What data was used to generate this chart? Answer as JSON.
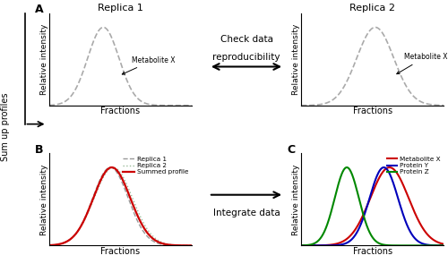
{
  "bg_color": "#ffffff",
  "panel_A_left_title": "Replica 1",
  "panel_A_right_title": "Replica 2",
  "check_data_text_line1": "Check data",
  "check_data_text_line2": "reproducibility",
  "integrate_data_text": "Integrate data",
  "sum_up_text": "Sum up profiles",
  "label_A": "A",
  "label_B": "B",
  "label_C": "C",
  "metabolite_x_label": "Metabolite X",
  "xlabel": "Fractions",
  "ylabel": "Relative intensity",
  "legend_B": [
    "Replica 1",
    "Replica 2",
    "Summed profile"
  ],
  "legend_C": [
    "Metabolite X",
    "Protein Y",
    "Protein Z"
  ],
  "color_dashed_gray": "#aaaaaa",
  "color_dashed_lightcyan": "#aaccaa",
  "color_red": "#cc0000",
  "color_blue": "#0000bb",
  "color_green": "#008800"
}
